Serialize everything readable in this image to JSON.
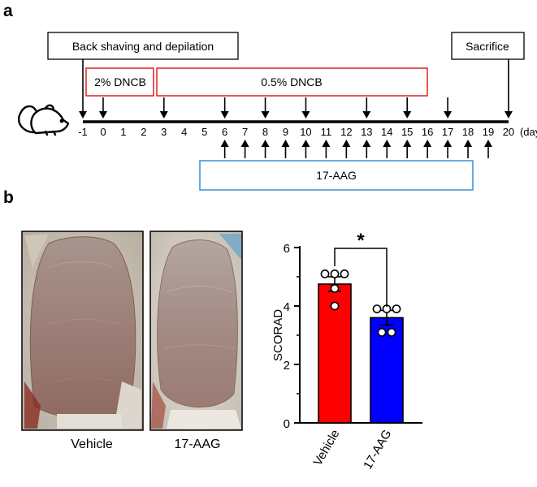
{
  "panel_a": {
    "letter": "a",
    "boxes": {
      "back_shaving": "Back shaving and depilation",
      "sacrifice": "Sacrifice",
      "dncb_2": "2% DNCB",
      "dncb_05": "0.5% DNCB",
      "drug": "17-AAG"
    },
    "timeline": {
      "days": [
        "-1",
        "0",
        "1",
        "2",
        "3",
        "4",
        "5",
        "6",
        "7",
        "8",
        "9",
        "10",
        "11",
        "12",
        "13",
        "14",
        "15",
        "16",
        "17",
        "18",
        "19",
        "20"
      ],
      "unit": "(days)",
      "dncb_arrow_days": [
        0,
        3,
        6,
        8,
        10,
        13,
        15,
        17
      ],
      "drug_arrow_days": [
        6,
        7,
        8,
        9,
        10,
        11,
        12,
        13,
        14,
        15,
        16,
        17,
        18,
        19
      ],
      "event_arrow_days": [
        -1,
        20
      ]
    },
    "icon": "mouse-icon"
  },
  "panel_b": {
    "letter": "b",
    "photo_labels": [
      "Vehicle",
      "17-AAG"
    ]
  },
  "chart_data": {
    "type": "bar",
    "categories": [
      "Vehicle",
      "17-AAG"
    ],
    "values": [
      4.75,
      3.6
    ],
    "errors": [
      0.25,
      0.25
    ],
    "points": [
      [
        4.0,
        4.6,
        5.1,
        5.1,
        5.1
      ],
      [
        3.1,
        3.1,
        3.9,
        3.9,
        3.9
      ]
    ],
    "colors": [
      "#ff0000",
      "#0000ff"
    ],
    "ylabel": "SCORAD",
    "ylim": [
      0,
      6
    ],
    "yticks": [
      "0",
      "2",
      "4",
      "6"
    ],
    "significance": "*"
  }
}
